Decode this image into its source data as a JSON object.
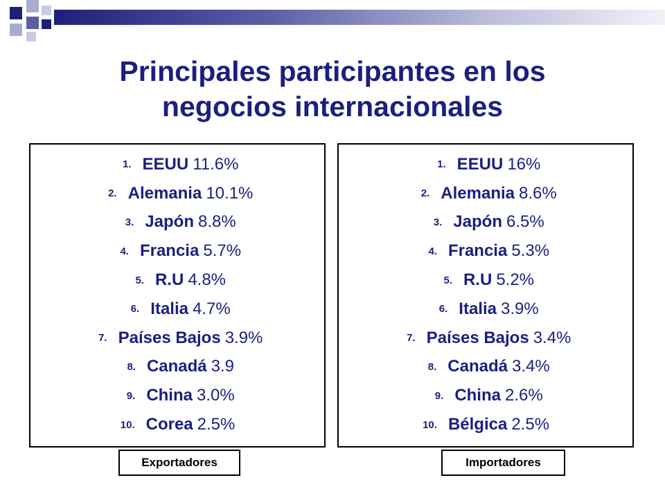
{
  "title": {
    "line1": "Principales participantes en los",
    "line2": "negocios internacionales"
  },
  "exporters": {
    "label": "Exportadores",
    "items": [
      {
        "num": "1.",
        "country": "EEUU",
        "value": "11.6%"
      },
      {
        "num": "2.",
        "country": "Alemania",
        "value": "10.1%"
      },
      {
        "num": "3.",
        "country": "Japón",
        "value": "8.8%"
      },
      {
        "num": "4.",
        "country": "Francia",
        "value": "5.7%"
      },
      {
        "num": "5.",
        "country": "R.U",
        "value": "4.8%"
      },
      {
        "num": "6.",
        "country": "Italia",
        "value": "4.7%"
      },
      {
        "num": "7.",
        "country": "Países Bajos",
        "value": "3.9%"
      },
      {
        "num": "8.",
        "country": "Canadá",
        "value": "3.9"
      },
      {
        "num": "9.",
        "country": "China",
        "value": "3.0%"
      },
      {
        "num": "10.",
        "country": "Corea",
        "value": "2.5%"
      }
    ]
  },
  "importers": {
    "label": "Importadores",
    "items": [
      {
        "num": "1.",
        "country": "EEUU",
        "value": "16%"
      },
      {
        "num": "2.",
        "country": "Alemania",
        "value": "8.6%"
      },
      {
        "num": "3.",
        "country": "Japón",
        "value": "6.5%"
      },
      {
        "num": "4.",
        "country": "Francia",
        "value": "5.3%"
      },
      {
        "num": "5.",
        "country": "R.U",
        "value": "5.2%"
      },
      {
        "num": "6.",
        "country": "Italia",
        "value": "3.9%"
      },
      {
        "num": "7.",
        "country": "Países Bajos",
        "value": "3.4%"
      },
      {
        "num": "8.",
        "country": "Canadá",
        "value": "3.4%"
      },
      {
        "num": "9.",
        "country": "China",
        "value": "2.6%"
      },
      {
        "num": "10.",
        "country": "Bélgica",
        "value": "2.5%"
      }
    ]
  },
  "colors": {
    "title": "#1a1f80",
    "text": "#1a1f80",
    "header_dark": "#1f1f7a",
    "header_light": "#b9bbd8"
  }
}
